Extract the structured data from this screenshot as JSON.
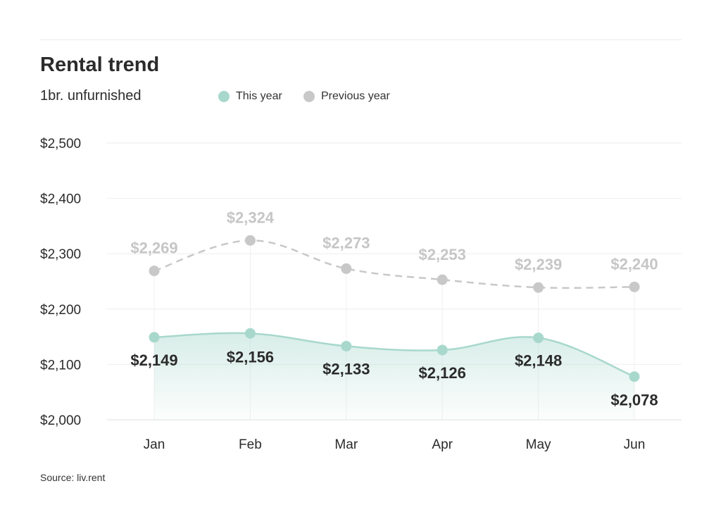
{
  "chart_data": {
    "type": "line",
    "title": "Rental trend",
    "subtitle": "1br. unfurnished",
    "categories": [
      "Jan",
      "Feb",
      "Mar",
      "Apr",
      "May",
      "Jun"
    ],
    "ylim": [
      2000,
      2500
    ],
    "yticks": [
      2000,
      2100,
      2200,
      2300,
      2400,
      2500
    ],
    "ytick_labels": [
      "$2,000",
      "$2,100",
      "$2,200",
      "$2,300",
      "$2,400",
      "$2,500"
    ],
    "series": [
      {
        "name": "This year",
        "values": [
          2149,
          2156,
          2133,
          2126,
          2148,
          2078
        ],
        "labels": [
          "$2,149",
          "$2,156",
          "$2,133",
          "$2,126",
          "$2,148",
          "$2,078"
        ],
        "color": "#a8d8cc",
        "style": "solid",
        "filled": true
      },
      {
        "name": "Previous year",
        "values": [
          2269,
          2324,
          2273,
          2253,
          2239,
          2240
        ],
        "labels": [
          "$2,269",
          "$2,324",
          "$2,273",
          "$2,253",
          "$2,239",
          "$2,240"
        ],
        "color": "#c8c8c8",
        "style": "dashed",
        "filled": false
      }
    ],
    "grid": true,
    "legend": "top",
    "source": "Source: liv.rent"
  }
}
